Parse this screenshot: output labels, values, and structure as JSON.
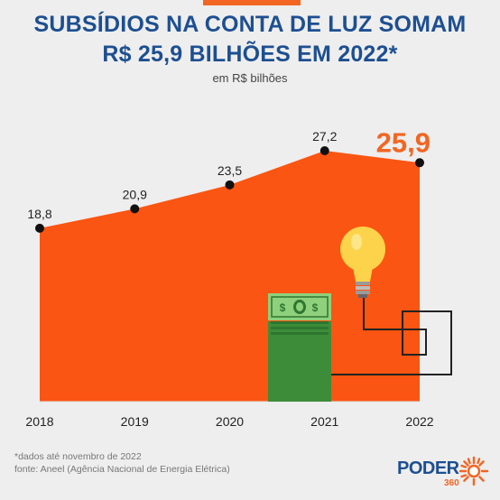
{
  "header": {
    "title_line1": "SUBSÍDIOS NA CONTA DE LUZ SOMAM",
    "title_line2": "R$ 25,9 BILHÕES EM 2022*",
    "subtitle": "em R$ bilhões"
  },
  "chart_data": {
    "type": "area",
    "categories": [
      "2018",
      "2019",
      "2020",
      "2021",
      "2022"
    ],
    "values": [
      18.8,
      20.9,
      23.5,
      27.2,
      25.9
    ],
    "labels": [
      "18,8",
      "20,9",
      "23,5",
      "27,2",
      "25,9"
    ],
    "highlight_index": 4,
    "ylim": [
      0,
      27.2
    ],
    "grid": false,
    "legend": "none",
    "colors": {
      "area": "#fa5512",
      "highlight": "#f26522",
      "dot": "#111111",
      "label": "#222222"
    }
  },
  "illustration": {
    "money_symbol": "$"
  },
  "footer": {
    "note": "*dados até novembro de 2022",
    "source": "fonte: Aneel (Agência Nacional de Energia Elétrica)",
    "logo_word": "PODER",
    "logo_number": "360"
  }
}
